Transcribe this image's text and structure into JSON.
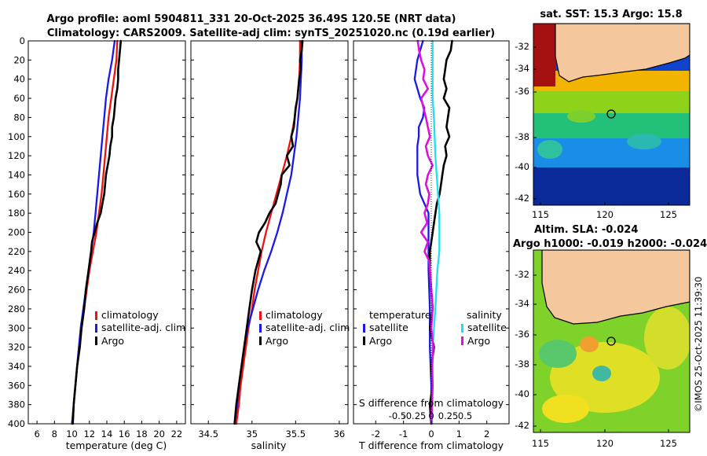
{
  "title": {
    "line1": "Argo profile: aoml 5904811_331 20-Oct-2025 36.49S 120.5E (NRT data)",
    "line2": "Climatology: CARS2009. Satellite-adj clim: synTS_20251020.nc (0.19d earlier)"
  },
  "colors": {
    "climatology": "#ee1111",
    "satellite": "#1a1ae6",
    "argo": "#000000",
    "satellite_salinity": "#22ddee",
    "argo_salinity": "#dd11dd"
  },
  "chart_data": [
    {
      "type": "line",
      "name": "temperature-profile",
      "xlabel": "temperature (deg C)",
      "ylabel": "depth",
      "xlim": [
        5,
        23
      ],
      "ylim": [
        400,
        0
      ],
      "xticks": [
        6,
        8,
        10,
        12,
        14,
        16,
        18,
        20,
        22
      ],
      "yticks": [
        0,
        20,
        40,
        60,
        80,
        100,
        120,
        140,
        160,
        180,
        200,
        220,
        240,
        260,
        280,
        300,
        320,
        340,
        360,
        380,
        400
      ],
      "legend": [
        "climatology",
        "satellite-adj. clim",
        "Argo"
      ],
      "series": [
        {
          "name": "climatology",
          "depth": [
            0,
            20,
            40,
            60,
            80,
            100,
            120,
            140,
            160,
            180,
            200,
            220,
            240,
            260,
            280,
            300,
            320,
            340,
            360,
            380,
            400
          ],
          "values": [
            15.2,
            15.1,
            14.8,
            14.5,
            14.2,
            14.0,
            13.8,
            13.6,
            13.4,
            13.1,
            12.8,
            12.4,
            12.0,
            11.7,
            11.4,
            11.1,
            10.8,
            10.6,
            10.4,
            10.2,
            10.1
          ]
        },
        {
          "name": "satellite-adj. clim",
          "depth": [
            0,
            20,
            40,
            60,
            80,
            100,
            120,
            140,
            160,
            180,
            200,
            220,
            240,
            260,
            280,
            300,
            320,
            340,
            360,
            380,
            400
          ],
          "values": [
            14.9,
            14.6,
            14.2,
            13.9,
            13.7,
            13.5,
            13.3,
            13.1,
            12.9,
            12.7,
            12.5,
            12.2,
            11.9,
            11.6,
            11.3,
            11.0,
            10.8,
            10.6,
            10.4,
            10.2,
            10.0
          ]
        },
        {
          "name": "Argo",
          "depth": [
            0,
            10,
            20,
            30,
            40,
            50,
            60,
            70,
            80,
            90,
            100,
            110,
            120,
            130,
            140,
            150,
            160,
            170,
            180,
            190,
            200,
            210,
            220,
            240,
            260,
            280,
            300,
            320,
            340,
            360,
            380,
            400
          ],
          "values": [
            15.6,
            15.5,
            15.4,
            15.3,
            15.3,
            15.2,
            15.0,
            14.9,
            14.8,
            14.6,
            14.6,
            14.4,
            14.3,
            14.1,
            13.9,
            13.8,
            13.7,
            13.5,
            13.3,
            12.9,
            12.6,
            12.3,
            12.2,
            11.9,
            11.6,
            11.4,
            11.1,
            10.9,
            10.6,
            10.4,
            10.2,
            10.1
          ]
        }
      ]
    },
    {
      "type": "line",
      "name": "salinity-profile",
      "xlabel": "salinity",
      "ylabel": "depth",
      "xlim": [
        34.3,
        36.1
      ],
      "ylim": [
        400,
        0
      ],
      "xticks": [
        34.5,
        35,
        35.5,
        36
      ],
      "xtick_labels": [
        "34.5",
        "35",
        "35.5",
        "36"
      ],
      "legend": [
        "climatology",
        "satellite-adj. clim",
        "Argo"
      ],
      "series": [
        {
          "name": "climatology",
          "depth": [
            0,
            20,
            40,
            60,
            80,
            100,
            120,
            140,
            160,
            180,
            200,
            220,
            240,
            260,
            280,
            300,
            320,
            340,
            360,
            380,
            400
          ],
          "values": [
            35.55,
            35.55,
            35.54,
            35.52,
            35.49,
            35.45,
            35.4,
            35.34,
            35.28,
            35.22,
            35.16,
            35.11,
            35.07,
            35.03,
            35.0,
            34.96,
            34.93,
            34.9,
            34.87,
            34.85,
            34.82
          ]
        },
        {
          "name": "satellite-adj. clim",
          "depth": [
            0,
            20,
            40,
            60,
            80,
            100,
            120,
            140,
            160,
            180,
            200,
            220,
            240,
            260,
            280,
            300,
            320,
            340,
            360,
            380,
            400
          ],
          "values": [
            35.57,
            35.57,
            35.56,
            35.55,
            35.53,
            35.51,
            35.48,
            35.45,
            35.4,
            35.35,
            35.29,
            35.22,
            35.14,
            35.07,
            35.01,
            34.95,
            34.91,
            34.88,
            34.85,
            34.83,
            34.8
          ]
        },
        {
          "name": "Argo",
          "depth": [
            0,
            10,
            20,
            30,
            40,
            50,
            60,
            70,
            80,
            90,
            100,
            110,
            120,
            130,
            140,
            150,
            160,
            170,
            180,
            190,
            200,
            210,
            220,
            240,
            260,
            280,
            300,
            320,
            340,
            360,
            380,
            400
          ],
          "values": [
            35.58,
            35.57,
            35.55,
            35.56,
            35.54,
            35.53,
            35.52,
            35.5,
            35.49,
            35.48,
            35.45,
            35.47,
            35.4,
            35.43,
            35.34,
            35.33,
            35.3,
            35.27,
            35.2,
            35.15,
            35.08,
            35.05,
            35.1,
            35.04,
            35.0,
            34.97,
            34.94,
            34.91,
            34.88,
            34.85,
            34.82,
            34.8
          ]
        }
      ]
    },
    {
      "type": "line",
      "name": "difference-profile",
      "xlabel": "T difference from climatology",
      "xlabel_top": "S difference from climatology",
      "xlim": [
        -2.8,
        2.8
      ],
      "ylim": [
        400,
        0
      ],
      "xticks": [
        -2,
        -1,
        0,
        1,
        2
      ],
      "xtick_labels": [
        "-2",
        "-1",
        "0",
        "1",
        "2"
      ],
      "top_xticks": [
        -0.5,
        -0.25,
        0,
        0.25,
        0.5
      ],
      "top_xtick_labels": [
        "-0.5",
        "-0.25",
        "0",
        "0.25",
        "0.5"
      ],
      "legend_temperature": {
        "heading": "temperature",
        "items": [
          "satellite",
          "Argo"
        ]
      },
      "legend_salinity": {
        "heading": "salinity",
        "items": [
          "satellite",
          "Argo"
        ]
      },
      "series": [
        {
          "name": "temperature satellite",
          "depth": [
            0,
            20,
            40,
            60,
            70,
            80,
            90,
            100,
            110,
            120,
            140,
            160,
            180,
            200,
            240,
            280,
            320,
            360,
            400
          ],
          "values": [
            -0.3,
            -0.5,
            -0.6,
            -0.4,
            -0.25,
            -0.3,
            -0.45,
            -0.45,
            -0.5,
            -0.5,
            -0.5,
            -0.4,
            -0.1,
            -0.1,
            -0.1,
            -0.05,
            -0.05,
            0,
            0
          ]
        },
        {
          "name": "temperature Argo",
          "depth": [
            0,
            10,
            20,
            30,
            40,
            50,
            60,
            70,
            80,
            90,
            100,
            110,
            120,
            130,
            140,
            150,
            160,
            170,
            180,
            190,
            200,
            210,
            220,
            240,
            260,
            280,
            300,
            320,
            340,
            360,
            380,
            400
          ],
          "values": [
            0.75,
            0.7,
            0.55,
            0.5,
            0.45,
            0.55,
            0.45,
            0.65,
            0.6,
            0.55,
            0.65,
            0.5,
            0.55,
            0.45,
            0.4,
            0.35,
            0.3,
            0.2,
            0.15,
            0.1,
            0.05,
            0.0,
            -0.05,
            -0.05,
            0,
            0.05,
            -0.05,
            0.1,
            0.0,
            0.05,
            -0.05,
            0.0
          ]
        },
        {
          "name": "salinity satellite",
          "depth": [
            0,
            20,
            40,
            60,
            80,
            100,
            120,
            140,
            160,
            180,
            200,
            220,
            240,
            280,
            320,
            360,
            400
          ],
          "values": [
            0.02,
            0.02,
            0.02,
            0.02,
            0.04,
            0.05,
            0.06,
            0.08,
            0.1,
            0.12,
            0.12,
            0.12,
            0.09,
            0.06,
            0.02,
            0.02,
            0.01
          ]
        },
        {
          "name": "salinity Argo",
          "depth": [
            0,
            10,
            20,
            30,
            40,
            50,
            60,
            80,
            100,
            110,
            120,
            130,
            140,
            150,
            160,
            170,
            180,
            190,
            200,
            210,
            220,
            230,
            240,
            260,
            280,
            300,
            320,
            340,
            360,
            380,
            400
          ],
          "values": [
            -0.2,
            -0.18,
            -0.15,
            -0.1,
            -0.12,
            -0.05,
            -0.15,
            -0.08,
            -0.02,
            -0.08,
            -0.05,
            0.02,
            -0.05,
            -0.08,
            -0.03,
            -0.05,
            -0.1,
            -0.06,
            -0.15,
            -0.05,
            -0.1,
            -0.03,
            -0.02,
            0.0,
            0.02,
            0.0,
            0.03,
            0.01,
            0.02,
            0.01,
            0.0
          ]
        }
      ]
    }
  ],
  "maps": {
    "sst": {
      "title": "sat. SST: 15.3 Argo: 15.8",
      "yticks": [
        "-32",
        "-34",
        "-36",
        "-38",
        "-40",
        "-42"
      ],
      "xticks": [
        "115",
        "120",
        "125"
      ]
    },
    "sla": {
      "title_line1": "Altim. SLA: -0.024",
      "title_line2": "Argo h1000: -0.019 h2000: -0.024",
      "yticks": [
        "-32",
        "-34",
        "-36",
        "-38",
        "-40",
        "-42"
      ],
      "xticks": [
        "115",
        "120",
        "125"
      ]
    }
  },
  "credit": "©IMOS 25-Oct-2025 11:39:30"
}
